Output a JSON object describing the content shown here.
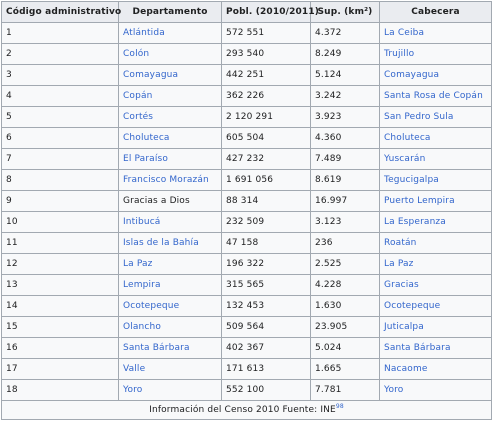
{
  "table": {
    "headers": [
      "Código administrativo",
      "Departamento",
      "Pobl. (2010/2011)",
      "Sup. (km²)",
      "Cabecera"
    ],
    "rows": [
      {
        "code": "1",
        "dept": "Atlántida",
        "dept_link": true,
        "pop": "572 551",
        "area": "4.372",
        "capital": "La Ceiba",
        "capital_link": true
      },
      {
        "code": "2",
        "dept": "Colón",
        "dept_link": true,
        "pop": "293 540",
        "area": "8.249",
        "capital": "Trujillo",
        "capital_link": true
      },
      {
        "code": "3",
        "dept": "Comayagua",
        "dept_link": true,
        "pop": "442 251",
        "area": "5.124",
        "capital": "Comayagua",
        "capital_link": true
      },
      {
        "code": "4",
        "dept": "Copán",
        "dept_link": true,
        "pop": "362 226",
        "area": "3.242",
        "capital": "Santa Rosa de Copán",
        "capital_link": true
      },
      {
        "code": "5",
        "dept": "Cortés",
        "dept_link": true,
        "pop": "2 120 291",
        "area": "3.923",
        "capital": "San Pedro Sula",
        "capital_link": true
      },
      {
        "code": "6",
        "dept": "Choluteca",
        "dept_link": true,
        "pop": "605 504",
        "area": "4.360",
        "capital": "Choluteca",
        "capital_link": true
      },
      {
        "code": "7",
        "dept": "El Paraíso",
        "dept_link": true,
        "pop": "427 232",
        "area": "7.489",
        "capital": "Yuscarán",
        "capital_link": true
      },
      {
        "code": "8",
        "dept": "Francisco Morazán",
        "dept_link": true,
        "pop": "1 691 056",
        "area": "8.619",
        "capital": "Tegucigalpa",
        "capital_link": true
      },
      {
        "code": "9",
        "dept": "Gracias a Dios",
        "dept_link": false,
        "pop": "88 314",
        "area": "16.997",
        "capital": "Puerto Lempira",
        "capital_link": true
      },
      {
        "code": "10",
        "dept": "Intibucá",
        "dept_link": true,
        "pop": "232 509",
        "area": "3.123",
        "capital": "La Esperanza",
        "capital_link": true
      },
      {
        "code": "11",
        "dept": "Islas de la Bahía",
        "dept_link": true,
        "pop": "47 158",
        "area": "236",
        "capital": "Roatán",
        "capital_link": true
      },
      {
        "code": "12",
        "dept": "La Paz",
        "dept_link": true,
        "pop": "196 322",
        "area": "2.525",
        "capital": "La Paz",
        "capital_link": true
      },
      {
        "code": "13",
        "dept": "Lempira",
        "dept_link": true,
        "pop": "315 565",
        "area": "4.228",
        "capital": "Gracias",
        "capital_link": true
      },
      {
        "code": "14",
        "dept": "Ocotepeque",
        "dept_link": true,
        "pop": "132 453",
        "area": "1.630",
        "capital": "Ocotepeque",
        "capital_link": true
      },
      {
        "code": "15",
        "dept": "Olancho",
        "dept_link": true,
        "pop": "509 564",
        "area": "23.905",
        "capital": "Juticalpa",
        "capital_link": true
      },
      {
        "code": "16",
        "dept": "Santa Bárbara",
        "dept_link": true,
        "pop": "402 367",
        "area": "5.024",
        "capital": "Santa Bárbara",
        "capital_link": true
      },
      {
        "code": "17",
        "dept": "Valle",
        "dept_link": true,
        "pop": "171 613",
        "area": "1.665",
        "capital": "Nacaome",
        "capital_link": true
      },
      {
        "code": "18",
        "dept": "Yoro",
        "dept_link": true,
        "pop": "552 100",
        "area": "7.781",
        "capital": "Yoro",
        "capital_link": true
      }
    ],
    "footer_text": "Información del Censo 2010 Fuente: INE",
    "footer_ref": "98"
  },
  "colors": {
    "link": "#3366cc",
    "header_bg": "#eaecf0",
    "cell_bg": "#f8f9fa",
    "border": "#a2a9b1",
    "text": "#202122"
  }
}
